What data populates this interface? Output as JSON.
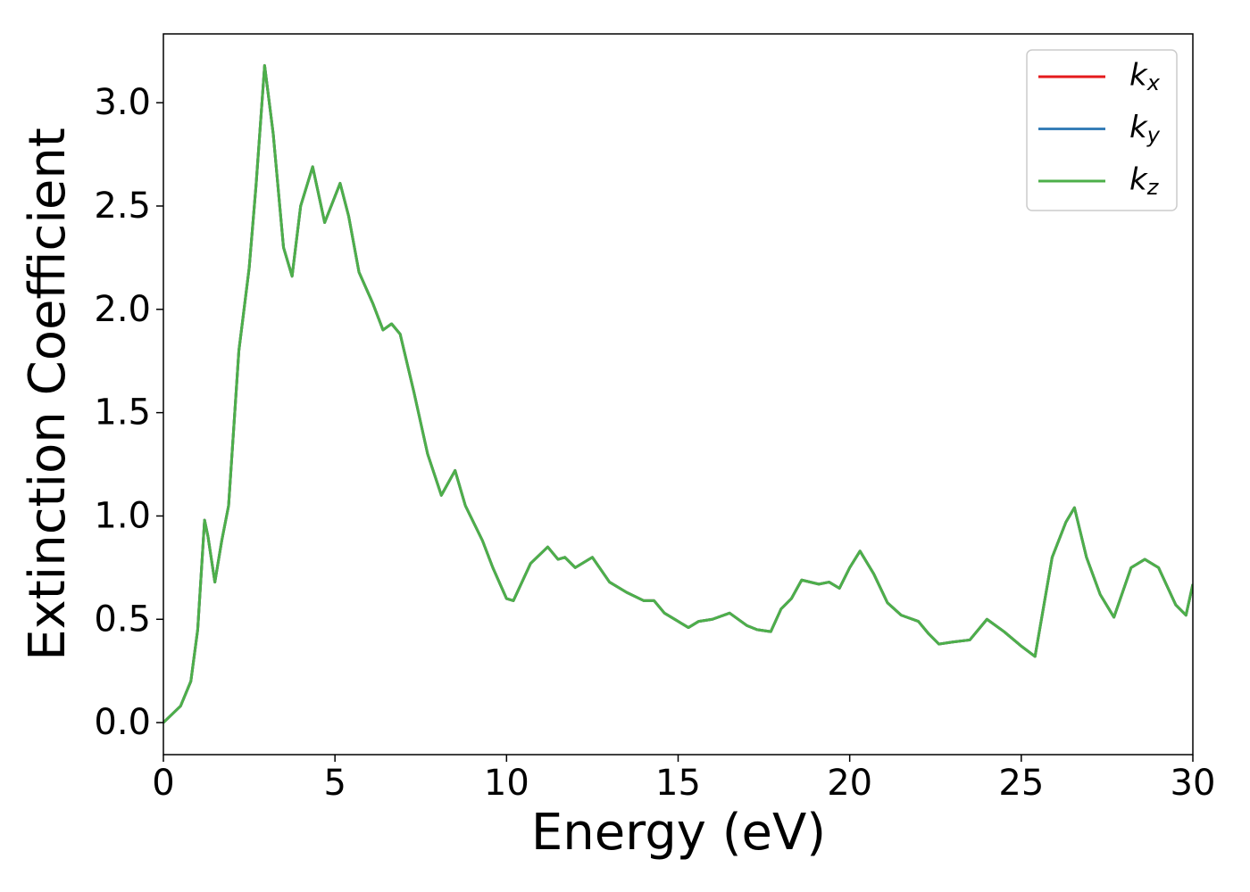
{
  "chart_data": {
    "type": "line",
    "xlabel": "Energy (eV)",
    "ylabel": "Extinction Coefficient",
    "x": [
      0,
      0.5,
      0.8,
      1.0,
      1.2,
      1.3,
      1.5,
      1.7,
      1.9,
      2.2,
      2.5,
      2.7,
      2.95,
      3.2,
      3.5,
      3.75,
      4.0,
      4.35,
      4.7,
      5.15,
      5.4,
      5.7,
      6.1,
      6.4,
      6.65,
      6.9,
      7.3,
      7.7,
      8.1,
      8.5,
      8.8,
      9.3,
      9.6,
      10.0,
      10.2,
      10.7,
      11.2,
      11.5,
      11.7,
      12.0,
      12.5,
      13.0,
      13.5,
      14.0,
      14.3,
      14.6,
      15.0,
      15.3,
      15.6,
      16.0,
      16.5,
      17.0,
      17.3,
      17.7,
      18.0,
      18.3,
      18.6,
      19.1,
      19.4,
      19.7,
      20.0,
      20.3,
      20.7,
      21.1,
      21.5,
      22.0,
      22.3,
      22.6,
      23.0,
      23.5,
      24.0,
      24.5,
      25.0,
      25.4,
      25.9,
      26.3,
      26.55,
      26.9,
      27.3,
      27.7,
      28.2,
      28.6,
      29.0,
      29.5,
      29.8,
      30.0
    ],
    "series": [
      {
        "name": "kx",
        "color": "#e41a1c",
        "values": [
          0,
          0.08,
          0.2,
          0.45,
          0.98,
          0.9,
          0.68,
          0.88,
          1.05,
          1.8,
          2.2,
          2.6,
          3.18,
          2.85,
          2.3,
          2.16,
          2.5,
          2.69,
          2.42,
          2.61,
          2.45,
          2.18,
          2.03,
          1.9,
          1.93,
          1.88,
          1.6,
          1.3,
          1.1,
          1.22,
          1.05,
          0.88,
          0.75,
          0.6,
          0.59,
          0.77,
          0.85,
          0.79,
          0.8,
          0.75,
          0.8,
          0.68,
          0.63,
          0.59,
          0.59,
          0.53,
          0.49,
          0.46,
          0.49,
          0.5,
          0.53,
          0.47,
          0.45,
          0.44,
          0.55,
          0.6,
          0.69,
          0.67,
          0.68,
          0.65,
          0.75,
          0.83,
          0.72,
          0.58,
          0.52,
          0.49,
          0.43,
          0.38,
          0.39,
          0.4,
          0.5,
          0.44,
          0.37,
          0.32,
          0.8,
          0.97,
          1.04,
          0.8,
          0.62,
          0.51,
          0.75,
          0.79,
          0.75,
          0.57,
          0.52,
          0.67
        ]
      },
      {
        "name": "ky",
        "color": "#377eb8",
        "values": [
          0,
          0.08,
          0.2,
          0.45,
          0.98,
          0.9,
          0.68,
          0.88,
          1.05,
          1.8,
          2.2,
          2.6,
          3.18,
          2.85,
          2.3,
          2.16,
          2.5,
          2.69,
          2.42,
          2.61,
          2.45,
          2.18,
          2.03,
          1.9,
          1.93,
          1.88,
          1.6,
          1.3,
          1.1,
          1.22,
          1.05,
          0.88,
          0.75,
          0.6,
          0.59,
          0.77,
          0.85,
          0.79,
          0.8,
          0.75,
          0.8,
          0.68,
          0.63,
          0.59,
          0.59,
          0.53,
          0.49,
          0.46,
          0.49,
          0.5,
          0.53,
          0.47,
          0.45,
          0.44,
          0.55,
          0.6,
          0.69,
          0.67,
          0.68,
          0.65,
          0.75,
          0.83,
          0.72,
          0.58,
          0.52,
          0.49,
          0.43,
          0.38,
          0.39,
          0.4,
          0.5,
          0.44,
          0.37,
          0.32,
          0.8,
          0.97,
          1.04,
          0.8,
          0.62,
          0.51,
          0.75,
          0.79,
          0.75,
          0.57,
          0.52,
          0.67
        ]
      },
      {
        "name": "kz",
        "color": "#4daf4a",
        "values": [
          0,
          0.08,
          0.2,
          0.45,
          0.98,
          0.9,
          0.68,
          0.88,
          1.05,
          1.8,
          2.2,
          2.6,
          3.18,
          2.85,
          2.3,
          2.16,
          2.5,
          2.69,
          2.42,
          2.61,
          2.45,
          2.18,
          2.03,
          1.9,
          1.93,
          1.88,
          1.6,
          1.3,
          1.1,
          1.22,
          1.05,
          0.88,
          0.75,
          0.6,
          0.59,
          0.77,
          0.85,
          0.79,
          0.8,
          0.75,
          0.8,
          0.68,
          0.63,
          0.59,
          0.59,
          0.53,
          0.49,
          0.46,
          0.49,
          0.5,
          0.53,
          0.47,
          0.45,
          0.44,
          0.55,
          0.6,
          0.69,
          0.67,
          0.68,
          0.65,
          0.75,
          0.83,
          0.72,
          0.58,
          0.52,
          0.49,
          0.43,
          0.38,
          0.39,
          0.4,
          0.5,
          0.44,
          0.37,
          0.32,
          0.8,
          0.97,
          1.04,
          0.8,
          0.62,
          0.51,
          0.75,
          0.79,
          0.75,
          0.57,
          0.52,
          0.67
        ]
      }
    ],
    "xlim": [
      0,
      30
    ],
    "xticks": [
      0,
      5,
      10,
      15,
      20,
      25,
      30
    ],
    "ylim": [
      -0.155,
      3.333
    ],
    "yticks": [
      {
        "value": 0,
        "label": "0.0"
      },
      0.5,
      {
        "value": 1,
        "label": "1.0"
      },
      1.5,
      {
        "value": 2,
        "label": "2.0"
      },
      2.5,
      {
        "value": 3,
        "label": "3.0"
      }
    ],
    "grid": false,
    "legend": "upper right"
  }
}
